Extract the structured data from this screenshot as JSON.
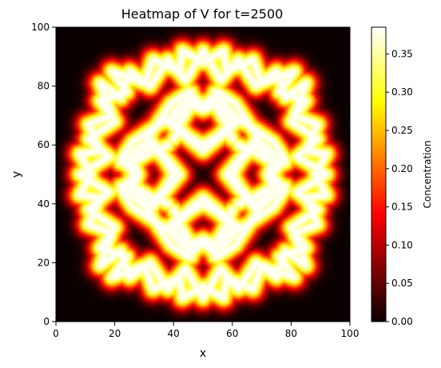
{
  "chart_data": {
    "type": "heatmap",
    "title": "Heatmap of V for t=2500",
    "xlabel": "x",
    "ylabel": "y",
    "xlim": [
      0,
      100
    ],
    "ylim": [
      0,
      100
    ],
    "xticks": [
      0,
      20,
      40,
      60,
      80,
      100
    ],
    "yticks": [
      0,
      20,
      40,
      60,
      80,
      100
    ],
    "grid": false,
    "grid_size": 100,
    "colormap": "hot",
    "colorbar": {
      "label": "Concentration",
      "range": [
        0.0,
        0.385
      ],
      "ticks": [
        0.0,
        0.05,
        0.1,
        0.15,
        0.2,
        0.25,
        0.3,
        0.35
      ],
      "tick_labels": [
        "0.00",
        "0.05",
        "0.10",
        "0.15",
        "0.20",
        "0.25",
        "0.30",
        "0.35"
      ],
      "placement": "right"
    },
    "pattern_segments": [
      [
        [
          50,
          92
        ],
        [
          44,
          82
        ],
        [
          38,
          89
        ],
        [
          32,
          80
        ],
        [
          25,
          85
        ],
        [
          22,
          76
        ],
        [
          15,
          81
        ],
        [
          19,
          70
        ],
        [
          11,
          67
        ],
        [
          15,
          58
        ],
        [
          8,
          57
        ],
        [
          12,
          50
        ]
      ],
      [
        [
          50,
          72
        ],
        [
          45,
          74
        ],
        [
          40,
          68
        ],
        [
          45,
          63
        ],
        [
          50,
          60
        ],
        [
          55,
          63
        ],
        [
          60,
          68
        ],
        [
          55,
          74
        ],
        [
          50,
          72
        ]
      ],
      [
        [
          32,
          65
        ],
        [
          26,
          61
        ],
        [
          22,
          55
        ],
        [
          27,
          50
        ],
        [
          24,
          45
        ],
        [
          28,
          41
        ],
        [
          32,
          38
        ],
        [
          37,
          44
        ],
        [
          42,
          50
        ],
        [
          37,
          56
        ],
        [
          32,
          62
        ]
      ],
      [
        [
          32,
          65
        ],
        [
          38,
          69
        ]
      ],
      [
        [
          28,
          55
        ],
        [
          33,
          58
        ]
      ],
      [
        [
          34,
          42
        ],
        [
          38,
          40
        ]
      ]
    ],
    "pattern_blobs": [
      [
        44,
        74
      ],
      [
        56,
        74
      ],
      [
        22,
        54
      ],
      [
        22,
        46
      ],
      [
        44,
        26
      ],
      [
        56,
        26
      ],
      [
        78,
        54
      ],
      [
        78,
        46
      ]
    ],
    "pattern_symmetry": "D4 about (50,50)",
    "pattern_peak": 0.385,
    "pattern_width": 2.7
  }
}
